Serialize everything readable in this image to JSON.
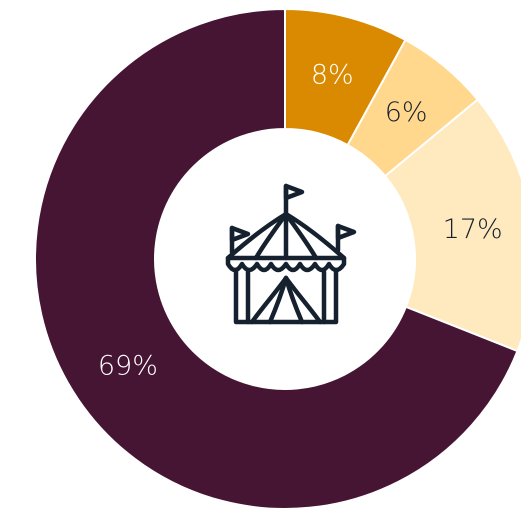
{
  "chart_data": {
    "type": "pie",
    "variant": "donut",
    "title": "",
    "start_angle_deg": 0,
    "categories": [
      "slice-1",
      "slice-2",
      "slice-3",
      "slice-4"
    ],
    "values": [
      8,
      6,
      17,
      69
    ],
    "labels": [
      "8%",
      "6%",
      "17%",
      "69%"
    ],
    "colors": [
      "#D98A00",
      "#FFD88E",
      "#FFE9BE",
      "#461533"
    ],
    "label_colors": [
      "#ffffff",
      "#15212e",
      "#15212e",
      "#ffffff"
    ],
    "legend": "none",
    "center_icon": "circus-tent-icon",
    "icon_color": "#15212e"
  }
}
